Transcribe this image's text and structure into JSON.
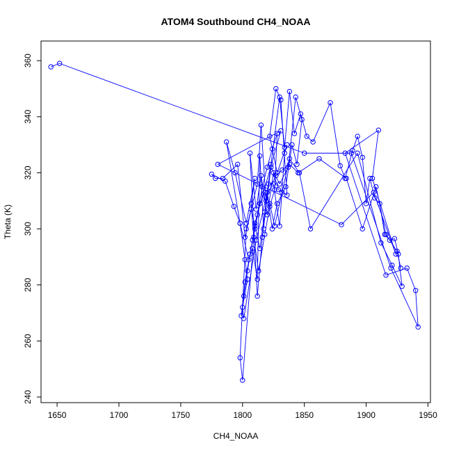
{
  "chart_data": {
    "type": "scatter",
    "title": "ATOM4 Southbound CH4_NOAA",
    "xlabel": "CH4_NOAA",
    "ylabel": "Theta (K)",
    "xlim": [
      1637,
      1952
    ],
    "ylim": [
      238,
      367
    ],
    "x_ticks": [
      1650,
      1700,
      1750,
      1800,
      1850,
      1900,
      1950
    ],
    "y_ticks": [
      240,
      260,
      280,
      300,
      320,
      340,
      360
    ],
    "x_tick_labels": [
      "1650",
      "1700",
      "1750",
      "1800",
      "1850",
      "1900",
      "1950"
    ],
    "y_tick_labels": [
      "240",
      "260",
      "280",
      "300",
      "320",
      "340",
      "360"
    ],
    "grid": false,
    "series_color": "#0000ff",
    "style": "points connected by lines (open circles)",
    "points": [
      [
        1645,
        357.8
      ],
      [
        1652,
        359.0
      ],
      [
        1850,
        327.0
      ],
      [
        1888,
        327.0
      ],
      [
        1920,
        286.0
      ],
      [
        1942,
        265.0
      ],
      [
        1940,
        278.0
      ],
      [
        1933,
        286.0
      ],
      [
        1916,
        283.5
      ],
      [
        1883,
        327.0
      ],
      [
        1910,
        335.2
      ],
      [
        1905,
        318.0
      ],
      [
        1924,
        291.0
      ],
      [
        1906,
        313.0
      ],
      [
        1880,
        301.5
      ],
      [
        1780,
        323.0
      ],
      [
        1831,
        335.0
      ],
      [
        1810,
        302.0
      ],
      [
        1800,
        246.0
      ],
      [
        1798,
        254.0
      ],
      [
        1803,
        300.0
      ],
      [
        1812,
        316.0
      ],
      [
        1815,
        337.0
      ],
      [
        1819,
        310.0
      ],
      [
        1823,
        323.0
      ],
      [
        1830,
        347.0
      ],
      [
        1834,
        329.0
      ],
      [
        1838,
        349.0
      ],
      [
        1842,
        334.0
      ],
      [
        1847,
        341.0
      ],
      [
        1852,
        333.0
      ],
      [
        1857,
        331.0
      ],
      [
        1871,
        345.0
      ],
      [
        1879,
        322.5
      ],
      [
        1883,
        318.0
      ],
      [
        1889,
        328.0
      ],
      [
        1893,
        333.0
      ],
      [
        1897,
        325.5
      ],
      [
        1900,
        309.0
      ],
      [
        1903,
        318.0
      ],
      [
        1907,
        311.0
      ],
      [
        1911,
        309.0
      ],
      [
        1915,
        298.0
      ],
      [
        1919,
        296.0
      ],
      [
        1923,
        296.5
      ],
      [
        1926,
        291.0
      ],
      [
        1929,
        279.5
      ],
      [
        1921,
        287.0
      ],
      [
        1912,
        295.0
      ],
      [
        1893,
        327.0
      ],
      [
        1855,
        300.0
      ],
      [
        1846,
        320.0
      ],
      [
        1838,
        325.0
      ],
      [
        1832,
        313.0
      ],
      [
        1826,
        301.0
      ],
      [
        1822,
        309.0
      ],
      [
        1818,
        313.0
      ],
      [
        1814,
        309.0
      ],
      [
        1810,
        300.0
      ],
      [
        1806,
        291.0
      ],
      [
        1802,
        281.0
      ],
      [
        1799,
        269.0
      ],
      [
        1801,
        276.0
      ],
      [
        1804,
        285.0
      ],
      [
        1808,
        296.0
      ],
      [
        1812,
        305.0
      ],
      [
        1816,
        315.0
      ],
      [
        1820,
        322.0
      ],
      [
        1824,
        328.5
      ],
      [
        1828,
        334.0
      ],
      [
        1826,
        314.0
      ],
      [
        1822,
        308.0
      ],
      [
        1818,
        298.0
      ],
      [
        1813,
        285.0
      ],
      [
        1809,
        297.0
      ],
      [
        1807,
        309.0
      ],
      [
        1810,
        318.0
      ],
      [
        1803,
        302.0
      ],
      [
        1794,
        320.0
      ],
      [
        1787,
        331.0
      ],
      [
        1798,
        302.0
      ],
      [
        1805,
        289.0
      ],
      [
        1808,
        293.0
      ],
      [
        1812,
        282.0
      ],
      [
        1814,
        326.0
      ],
      [
        1817,
        300.0
      ],
      [
        1821,
        316.0
      ],
      [
        1825,
        316.0
      ],
      [
        1830,
        301.0
      ],
      [
        1834,
        327.0
      ],
      [
        1836,
        330.0
      ],
      [
        1828,
        320.0
      ],
      [
        1822,
        333.0
      ],
      [
        1827,
        350.0
      ],
      [
        1831,
        346.0
      ],
      [
        1836,
        312.0
      ],
      [
        1829,
        314.0
      ],
      [
        1825,
        320.0
      ],
      [
        1820,
        305.0
      ],
      [
        1815,
        319.0
      ],
      [
        1811,
        307.0
      ],
      [
        1806,
        327.0
      ],
      [
        1812,
        276.0
      ],
      [
        1816,
        297.0
      ],
      [
        1823,
        322.0
      ],
      [
        1830,
        316.0
      ],
      [
        1837,
        322.0
      ],
      [
        1843,
        347.0
      ],
      [
        1848,
        339.0
      ],
      [
        1844,
        323.0
      ],
      [
        1840,
        330.0
      ],
      [
        1835,
        315.0
      ],
      [
        1828,
        309.0
      ],
      [
        1824,
        300.0
      ],
      [
        1820,
        313.0
      ],
      [
        1818,
        306.0
      ],
      [
        1814,
        293.0
      ],
      [
        1810,
        301.0
      ],
      [
        1807,
        307.0
      ],
      [
        1802,
        297.0
      ],
      [
        1796,
        323.0
      ],
      [
        1784,
        318.0
      ],
      [
        1778,
        318.0
      ],
      [
        1775,
        319.5
      ],
      [
        1786,
        317.0
      ],
      [
        1793,
        308.0
      ],
      [
        1798,
        302.0
      ],
      [
        1802,
        289.0
      ],
      [
        1804,
        282.0
      ],
      [
        1800,
        272.0
      ],
      [
        1801,
        268.0
      ],
      [
        1811,
        296.0
      ],
      [
        1819,
        311.0
      ],
      [
        1827,
        319.0
      ],
      [
        1832,
        321.0
      ],
      [
        1838,
        323.0
      ],
      [
        1845,
        320.0
      ],
      [
        1862,
        325.0
      ],
      [
        1884,
        318.0
      ],
      [
        1897,
        300.0
      ],
      [
        1908,
        315.0
      ],
      [
        1916,
        298.0
      ],
      [
        1925,
        292.0
      ],
      [
        1928,
        286.0
      ]
    ]
  }
}
